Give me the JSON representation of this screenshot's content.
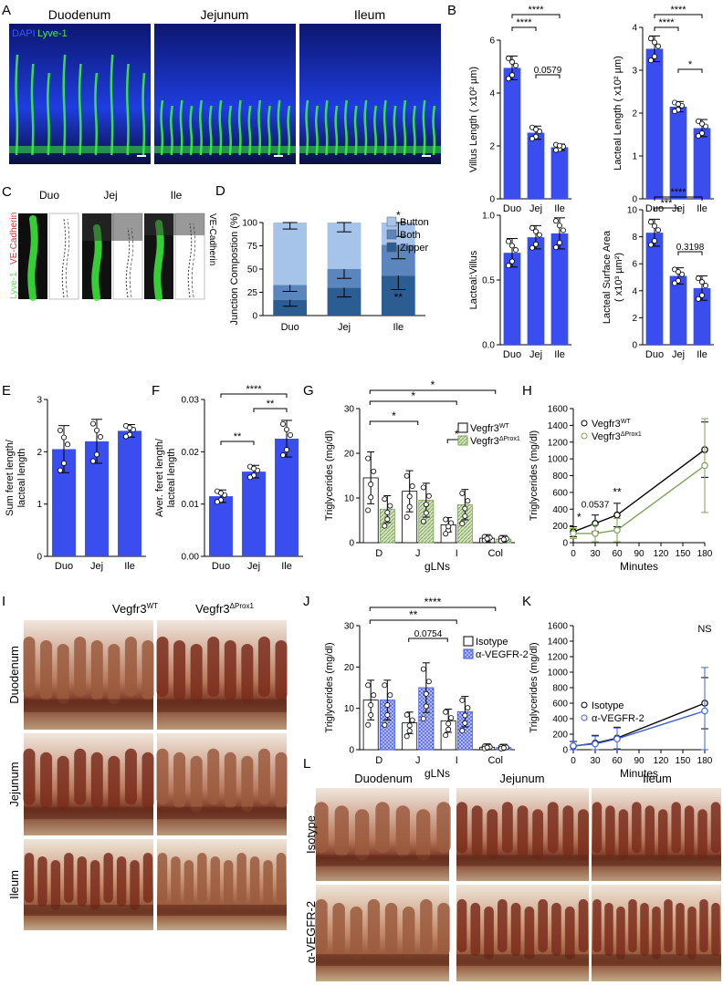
{
  "panel_letters": [
    "A",
    "B",
    "C",
    "D",
    "E",
    "F",
    "G",
    "H",
    "I",
    "J",
    "K",
    "L"
  ],
  "panelA": {
    "titles": [
      "Duodenum",
      "Jejunum",
      "Ileum"
    ],
    "legend_dapi": "DAPI",
    "legend_lyve": "Lyve-1"
  },
  "panelC": {
    "titles": [
      "Duo",
      "Jej",
      "Ile"
    ],
    "label_lyve": "Lyve-1",
    "label_ve": "VE-Cadherin",
    "label_ve2": "VE-Cadherin"
  },
  "panelI": {
    "cols": [
      "Vegfr3",
      "Vegfr3"
    ],
    "col_sups": [
      "WT",
      "ΔProx1"
    ],
    "rows": [
      "Duodenum",
      "Jejunum",
      "Ileum"
    ]
  },
  "panelL": {
    "cols": [
      "Duodenum",
      "Jejunum",
      "Ileum"
    ],
    "rows": [
      "Isotype",
      "α-VEGFR-2"
    ]
  },
  "colors": {
    "bar_blue": "#3a4ef0",
    "dapi": "#1a2fd6",
    "lyve": "#3cf03c",
    "ve": "#e03030",
    "dark1": "#2c5d92",
    "dark2": "#5a85bd",
    "dark3": "#a6c4ea",
    "green": "#7da35a",
    "green_light": "#d6e6c2",
    "blue_line": "#3f5fdc"
  },
  "chart_data": [
    {
      "id": "B1",
      "type": "bar",
      "categories": [
        "Duo",
        "Jej",
        "Ile"
      ],
      "values": [
        4.95,
        2.5,
        1.95
      ],
      "errors": [
        0.45,
        0.25,
        0.12
      ],
      "ylabel": "Villus Length ( x10² µm)",
      "ylim": [
        0,
        6
      ],
      "yticks": [
        "0",
        "2",
        "4",
        "6"
      ],
      "annotations": [
        "****",
        "****",
        "0.0579"
      ]
    },
    {
      "id": "B2",
      "type": "bar",
      "categories": [
        "Duo",
        "Jej",
        "Ile"
      ],
      "values": [
        3.5,
        2.15,
        1.65
      ],
      "errors": [
        0.3,
        0.12,
        0.2
      ],
      "ylabel": "Lacteal Length ( x10² µm)",
      "ylim": [
        0,
        4
      ],
      "yticks": [
        "0",
        "1",
        "2",
        "3",
        "4"
      ],
      "annotations": [
        "****",
        "****",
        "*"
      ]
    },
    {
      "id": "B3",
      "type": "bar",
      "categories": [
        "Duo",
        "Jej",
        "Ile"
      ],
      "values": [
        0.71,
        0.83,
        0.86
      ],
      "errors": [
        0.11,
        0.09,
        0.12
      ],
      "ylabel": "Lacteal:Villus",
      "ylim": [
        0,
        1.0
      ],
      "yticks": [
        "0.0",
        "0.5",
        "1.0"
      ],
      "annotations": []
    },
    {
      "id": "B4",
      "type": "bar",
      "categories": [
        "Duo",
        "Jej",
        "Ile"
      ],
      "values": [
        8.3,
        5.1,
        4.2
      ],
      "errors": [
        1.0,
        0.6,
        0.9
      ],
      "ylabel": "Lacteal Surface Area ( x10³ µm²)",
      "ylim": [
        0,
        10
      ],
      "yticks": [
        "0",
        "2",
        "4",
        "6",
        "8",
        "10"
      ],
      "annotations": [
        "***",
        "****",
        "0.3198"
      ]
    },
    {
      "id": "D",
      "type": "stacked_bar",
      "categories": [
        "Duo",
        "Jej",
        "Ile"
      ],
      "series": [
        {
          "name": "Zipper",
          "values": [
            17,
            30,
            43
          ]
        },
        {
          "name": "Both",
          "values": [
            16,
            20,
            33
          ]
        },
        {
          "name": "Button",
          "values": [
            67,
            50,
            24
          ]
        }
      ],
      "ylabel": "Junction Compostion (%)",
      "ylim": [
        0,
        100
      ],
      "yticks": [
        "0",
        "25",
        "50",
        "75",
        "100"
      ],
      "annotations": [
        "*",
        "**"
      ]
    },
    {
      "id": "E",
      "type": "bar",
      "categories": [
        "Duo",
        "Jej",
        "Ile"
      ],
      "values": [
        2.05,
        2.2,
        2.4
      ],
      "errors": [
        0.45,
        0.42,
        0.12
      ],
      "ylabel": "Sum feret length/ lacteal length",
      "ylim": [
        0,
        3
      ],
      "yticks": [
        "0",
        "1",
        "2",
        "3"
      ],
      "annotations": []
    },
    {
      "id": "F",
      "type": "bar",
      "categories": [
        "Duo",
        "Jej",
        "Ile"
      ],
      "values": [
        0.0115,
        0.0162,
        0.0225
      ],
      "errors": [
        0.0012,
        0.0012,
        0.0035
      ],
      "ylabel": "Aver. feret length/ lacteal length",
      "ylim": [
        0,
        0.03
      ],
      "yticks": [
        "0.00",
        "0.01",
        "0.02",
        "0.03"
      ],
      "annotations": [
        "****",
        "**",
        "**"
      ]
    },
    {
      "id": "G",
      "type": "bar",
      "categories": [
        "D",
        "J",
        "I",
        "Col"
      ],
      "series": [
        {
          "name": "Vegfr3WT",
          "values": [
            14.5,
            11.5,
            4.0,
            1.0
          ]
        },
        {
          "name": "Vegfr3ΔProx1",
          "values": [
            7.5,
            9.5,
            8.5,
            0.8
          ]
        }
      ],
      "ylabel": "Triglycerides (mg/dl)",
      "xlabel": "gLNs",
      "ylim": [
        0,
        30
      ],
      "yticks": [
        "0",
        "10",
        "20",
        "30"
      ],
      "annotations": [
        "*",
        "*",
        "*",
        "*"
      ]
    },
    {
      "id": "H",
      "type": "line",
      "x": [
        0,
        30,
        60,
        180
      ],
      "series": [
        {
          "name": "Vegfr3WT",
          "values": [
            130,
            230,
            330,
            1110
          ]
        },
        {
          "name": "Vegfr3ΔProx1",
          "values": [
            110,
            110,
            150,
            920
          ]
        }
      ],
      "ylabel": "Triglycerides (mg/dl)",
      "xlabel": "Minutes",
      "ylim": [
        0,
        1600
      ],
      "xlim": [
        0,
        180
      ],
      "yticks": [
        "0",
        "200",
        "400",
        "600",
        "800",
        "1000",
        "1200",
        "1400",
        "1600"
      ],
      "xticks": [
        "0",
        "30",
        "60",
        "90",
        "120",
        "150",
        "180"
      ],
      "annotations": [
        "*",
        "0.0537",
        "**"
      ]
    },
    {
      "id": "J",
      "type": "bar",
      "categories": [
        "D",
        "J",
        "I",
        "Col"
      ],
      "series": [
        {
          "name": "Isotype",
          "values": [
            12.0,
            6.5,
            7.0,
            0.6
          ]
        },
        {
          "name": "α-VEGFR-2",
          "values": [
            12.0,
            15.0,
            9.2,
            0.5
          ]
        }
      ],
      "ylabel": "Triglycerides (mg/dl)",
      "xlabel": "gLNs",
      "ylim": [
        0,
        30
      ],
      "yticks": [
        "0",
        "10",
        "20",
        "30"
      ],
      "annotations": [
        "****",
        "**",
        "0.0754"
      ]
    },
    {
      "id": "K",
      "type": "line",
      "x": [
        0,
        30,
        60,
        180
      ],
      "series": [
        {
          "name": "Isotype",
          "values": [
            45,
            85,
            150,
            600
          ]
        },
        {
          "name": "α-VEGFR-2",
          "values": [
            50,
            75,
            140,
            500
          ]
        }
      ],
      "ylabel": "Triglycerides (mg/dl)",
      "xlabel": "Minutes",
      "ylim": [
        0,
        1600
      ],
      "xlim": [
        0,
        180
      ],
      "yticks": [
        "0",
        "200",
        "400",
        "600",
        "800",
        "1000",
        "1200",
        "1400",
        "1600"
      ],
      "xticks": [
        "0",
        "30",
        "60",
        "90",
        "120",
        "150",
        "180"
      ],
      "annotations": [
        "NS"
      ]
    }
  ],
  "legends": {
    "D": [
      "Button",
      "Both",
      "Zipper"
    ],
    "G_names": [
      "Vegfr3",
      "Vegfr3"
    ],
    "G_sups": [
      "WT",
      "ΔProx1"
    ],
    "H_names": [
      "Vegfr3",
      "Vegfr3"
    ],
    "H_sups": [
      "WT",
      "ΔProx1"
    ],
    "J": [
      "Isotype",
      "α-VEGFR-2"
    ],
    "K": [
      "Isotype",
      "α-VEGFR-2"
    ]
  }
}
